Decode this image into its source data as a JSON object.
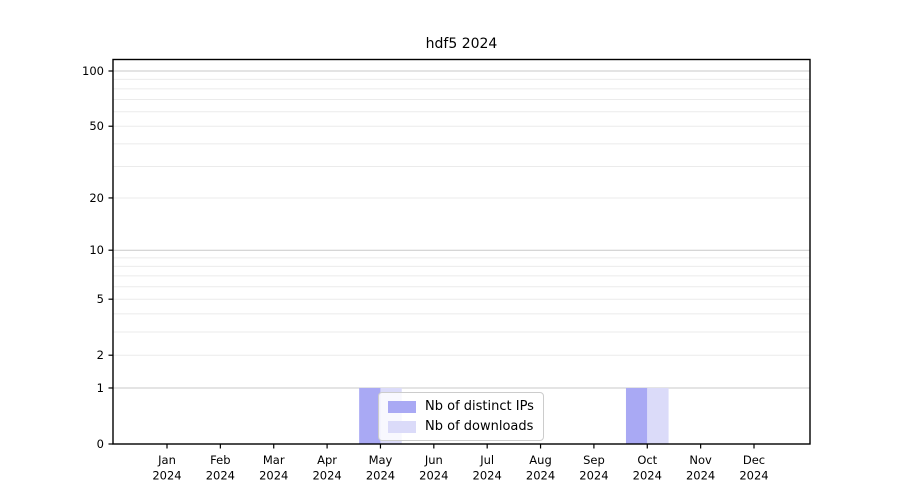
{
  "chart_data": {
    "type": "bar",
    "title": "hdf5 2024",
    "categories": [
      "Jan 2024",
      "Feb 2024",
      "Mar 2024",
      "Apr 2024",
      "May 2024",
      "Jun 2024",
      "Jul 2024",
      "Aug 2024",
      "Sep 2024",
      "Oct 2024",
      "Nov 2024",
      "Dec 2024"
    ],
    "series": [
      {
        "name": "Nb of distinct IPs",
        "color": "#a9a9f4",
        "values": [
          0,
          0,
          0,
          0,
          1,
          0,
          0,
          0,
          0,
          1,
          0,
          0
        ]
      },
      {
        "name": "Nb of downloads",
        "color": "#dbdbf9",
        "values": [
          0,
          0,
          0,
          0,
          1,
          0,
          0,
          0,
          0,
          1,
          0,
          0
        ]
      }
    ],
    "xlabel": "",
    "ylabel": "",
    "yscale": "log1p",
    "ylim": [
      0,
      100
    ],
    "y_tick_values": [
      0,
      1,
      2,
      5,
      10,
      20,
      50,
      100
    ],
    "y_tick_labels": [
      "0",
      "1",
      "2",
      "5",
      "10",
      "20",
      "50",
      "100"
    ],
    "grid_major_values": [
      1,
      10,
      100
    ],
    "grid_minor_values": [
      2,
      3,
      4,
      5,
      6,
      7,
      8,
      9,
      20,
      30,
      40,
      50,
      60,
      70,
      80,
      90
    ],
    "grid": "on",
    "legend_position": "lower-center-inside",
    "colors": {
      "background": "#ffffff",
      "axis": "#000000",
      "grid_major": "#c9c9c9",
      "grid_minor": "#ebebeb",
      "tick_label": "#000000"
    }
  }
}
